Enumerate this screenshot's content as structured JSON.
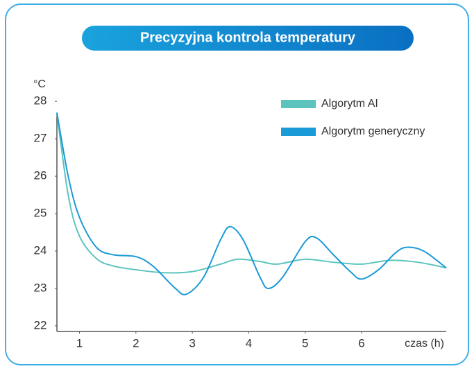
{
  "chart_data": {
    "type": "line",
    "title": "Precyzyjna kontrola temperatury",
    "y_label": "°C",
    "x_label": "czas (h)",
    "xlim": [
      0.6,
      7.5
    ],
    "xticks": [
      1,
      2,
      3,
      4,
      5,
      6
    ],
    "ylim": [
      21.85,
      28.3
    ],
    "yticks": [
      22,
      23,
      24,
      25,
      26,
      27,
      28
    ],
    "legend": "top-right",
    "series": [
      {
        "name": "Algorytm AI",
        "color": "#5cc4bd",
        "x": [
          0.6,
          0.8,
          1.0,
          1.3,
          1.6,
          2.0,
          2.5,
          3.0,
          3.5,
          3.8,
          4.2,
          4.5,
          5.0,
          5.5,
          6.0,
          6.5,
          7.0,
          7.5
        ],
        "values": [
          27.7,
          25.5,
          24.4,
          23.8,
          23.6,
          23.5,
          23.42,
          23.45,
          23.65,
          23.78,
          23.72,
          23.65,
          23.78,
          23.7,
          23.65,
          23.75,
          23.7,
          23.55
        ]
      },
      {
        "name": "Algorytm generyczny",
        "color": "#1a9ad6",
        "x": [
          0.6,
          0.8,
          1.0,
          1.3,
          1.6,
          2.0,
          2.3,
          2.7,
          2.9,
          3.2,
          3.5,
          3.67,
          3.9,
          4.2,
          4.35,
          4.6,
          5.0,
          5.2,
          5.5,
          5.8,
          6.0,
          6.3,
          6.6,
          6.8,
          7.1,
          7.5
        ],
        "values": [
          27.7,
          26.0,
          24.9,
          24.1,
          23.9,
          23.85,
          23.6,
          23.0,
          22.85,
          23.3,
          24.3,
          24.65,
          24.3,
          23.3,
          23.0,
          23.3,
          24.25,
          24.35,
          23.9,
          23.45,
          23.25,
          23.5,
          23.95,
          24.1,
          24.0,
          23.55
        ]
      }
    ]
  }
}
